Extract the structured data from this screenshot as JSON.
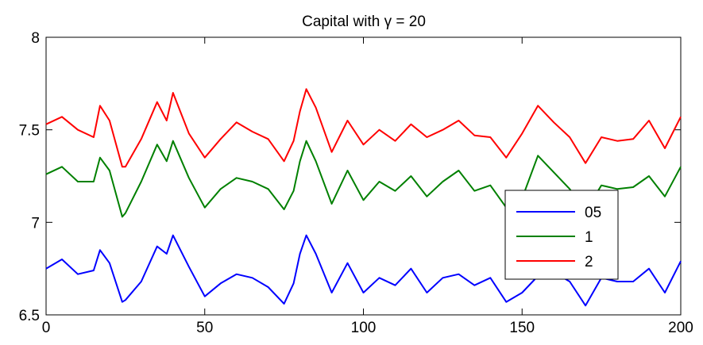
{
  "chart_data": {
    "type": "line",
    "title": "Capital with  γ = 20",
    "xlabel": "",
    "ylabel": "",
    "xlim": [
      0,
      200
    ],
    "ylim": [
      6.5,
      8
    ],
    "xticks": [
      0,
      50,
      100,
      150,
      200
    ],
    "xtick_labels": [
      "0",
      "50",
      "100",
      "150",
      "200"
    ],
    "yticks": [
      6.5,
      7,
      7.5,
      8
    ],
    "ytick_labels": [
      "6.5",
      "7",
      "7.5",
      "8"
    ],
    "grid": false,
    "legend_position": "bottom-right",
    "x": [
      0,
      5,
      10,
      15,
      17,
      20,
      24,
      25,
      30,
      35,
      38,
      40,
      45,
      50,
      55,
      60,
      65,
      70,
      75,
      78,
      80,
      82,
      85,
      90,
      95,
      100,
      105,
      110,
      115,
      120,
      125,
      130,
      135,
      140,
      145,
      150,
      155,
      160,
      165,
      170,
      175,
      180,
      185,
      190,
      195,
      200
    ],
    "series": [
      {
        "name": "05",
        "color": "#0000ff",
        "values": [
          6.75,
          6.8,
          6.72,
          6.74,
          6.85,
          6.78,
          6.57,
          6.58,
          6.68,
          6.87,
          6.83,
          6.93,
          6.76,
          6.6,
          6.67,
          6.72,
          6.7,
          6.65,
          6.56,
          6.67,
          6.83,
          6.93,
          6.83,
          6.62,
          6.78,
          6.62,
          6.7,
          6.66,
          6.75,
          6.62,
          6.7,
          6.72,
          6.66,
          6.7,
          6.57,
          6.62,
          6.71,
          6.73,
          6.68,
          6.55,
          6.7,
          6.68,
          6.68,
          6.75,
          6.62,
          6.79
        ]
      },
      {
        "name": "1",
        "color": "#008000",
        "values": [
          7.26,
          7.3,
          7.22,
          7.22,
          7.35,
          7.28,
          7.03,
          7.05,
          7.22,
          7.42,
          7.33,
          7.44,
          7.24,
          7.08,
          7.18,
          7.24,
          7.22,
          7.18,
          7.07,
          7.17,
          7.33,
          7.44,
          7.33,
          7.1,
          7.28,
          7.12,
          7.22,
          7.17,
          7.25,
          7.14,
          7.22,
          7.28,
          7.17,
          7.2,
          7.08,
          7.13,
          7.36,
          7.27,
          7.18,
          7.06,
          7.2,
          7.18,
          7.19,
          7.25,
          7.14,
          7.3
        ]
      },
      {
        "name": "2",
        "color": "#ff0000",
        "values": [
          7.53,
          7.57,
          7.5,
          7.46,
          7.63,
          7.55,
          7.3,
          7.3,
          7.45,
          7.65,
          7.55,
          7.7,
          7.48,
          7.35,
          7.45,
          7.54,
          7.49,
          7.45,
          7.33,
          7.44,
          7.6,
          7.72,
          7.62,
          7.38,
          7.55,
          7.42,
          7.5,
          7.44,
          7.53,
          7.46,
          7.5,
          7.55,
          7.47,
          7.46,
          7.35,
          7.48,
          7.63,
          7.54,
          7.46,
          7.32,
          7.46,
          7.44,
          7.45,
          7.55,
          7.4,
          7.57
        ]
      }
    ]
  }
}
